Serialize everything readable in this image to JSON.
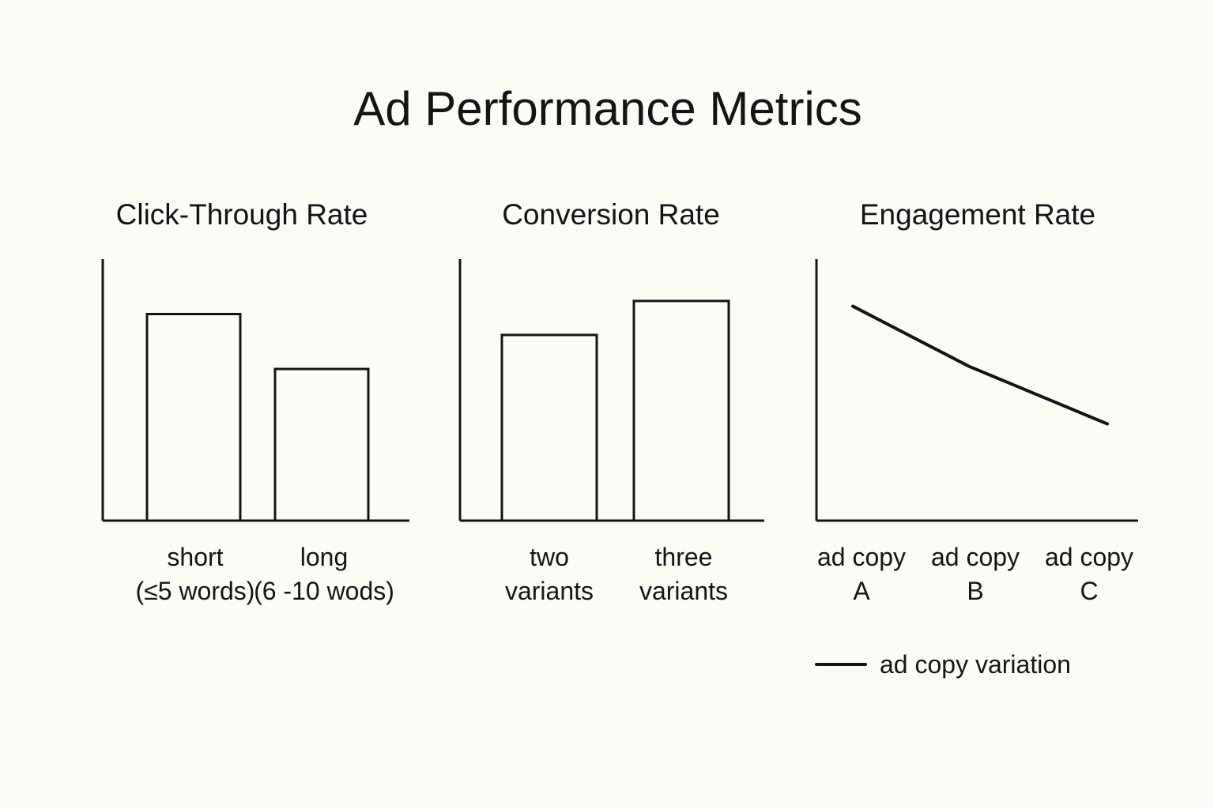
{
  "title": "Ad Performance Metrics",
  "chart_data": [
    {
      "type": "bar",
      "title": "Click-Through Rate",
      "categories": [
        [
          "short",
          "(≤5 words)"
        ],
        [
          "long",
          "(6 -10 wods)"
        ]
      ],
      "values": [
        79,
        58
      ],
      "ylim": [
        0,
        100
      ],
      "xlabel": "",
      "ylabel": "",
      "grid": false
    },
    {
      "type": "bar",
      "title": "Conversion Rate",
      "categories": [
        [
          "two",
          "variants"
        ],
        [
          "three",
          "variants"
        ]
      ],
      "values": [
        71,
        84
      ],
      "ylim": [
        0,
        100
      ],
      "xlabel": "",
      "ylabel": "",
      "grid": false
    },
    {
      "type": "line",
      "title": "Engagement Rate",
      "categories": [
        [
          "ad copy",
          "A"
        ],
        [
          "ad copy",
          "B"
        ],
        [
          "ad copy",
          "C"
        ]
      ],
      "values": [
        82,
        59,
        37
      ],
      "ylim": [
        0,
        100
      ],
      "xlabel": "",
      "ylabel": "",
      "grid": false,
      "legend": {
        "label": "ad copy variation",
        "placement": "bottom-right"
      }
    }
  ]
}
